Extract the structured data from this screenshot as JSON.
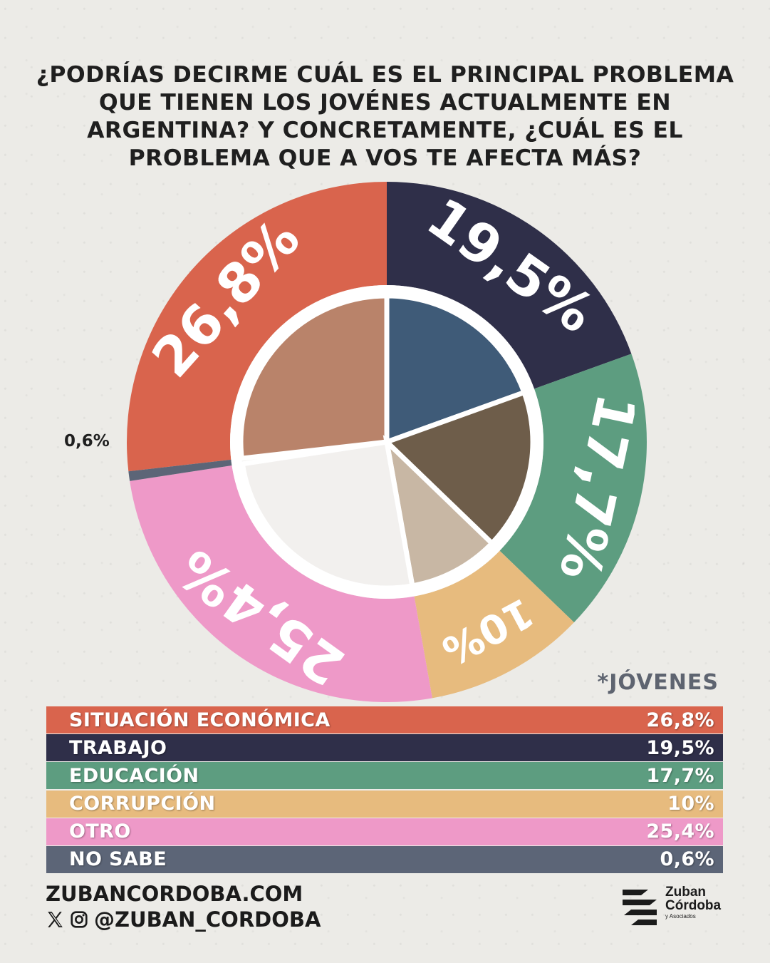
{
  "title_lines": [
    "¿PODRÍAS DECIRME CUÁL ES EL PRINCIPAL PROBLEMA",
    "QUE TIENEN LOS JOVÉNES ACTUALMENTE EN",
    "ARGENTINA? Y CONCRETAMENTE, ¿CUÁL ES EL",
    "PROBLEMA QUE A VOS TE AFECTA MÁS?"
  ],
  "segment_label": "*JÓVENES",
  "chart_data": {
    "type": "pie",
    "title": "¿PODRÍAS DECIRME CUÁL ES EL PRINCIPAL PROBLEMA QUE TIENEN LOS JOVÉNES ACTUALMENTE EN ARGENTINA? Y CONCRETAMENTE, ¿CUÁL ES EL PROBLEMA QUE A VOS TE AFECTA MÁS?",
    "categories": [
      "SITUACIÓN ECONÓMICA",
      "TRABAJO",
      "EDUCACIÓN",
      "CORRUPCIÓN",
      "OTRO",
      "NO SABE"
    ],
    "values": [
      26.8,
      19.5,
      17.7,
      10,
      25.4,
      0.6
    ],
    "labels": [
      "26,8%",
      "19,5%",
      "17,7%",
      "10%",
      "25,4%",
      "0,6%"
    ],
    "colors": [
      "#d9644d",
      "#2f2f49",
      "#5d9d80",
      "#e7bb7e",
      "#ee99c8",
      "#5c6577"
    ],
    "legend_position": "bottom"
  },
  "footer": {
    "website": "ZUBANCORDOBA.COM",
    "handle": "@ZUBAN_CORDOBA",
    "social_icons": [
      "x-icon",
      "instagram-icon"
    ]
  },
  "logo": {
    "line1": "Zuban",
    "line2": "Córdoba",
    "line3": "y Asociados"
  }
}
